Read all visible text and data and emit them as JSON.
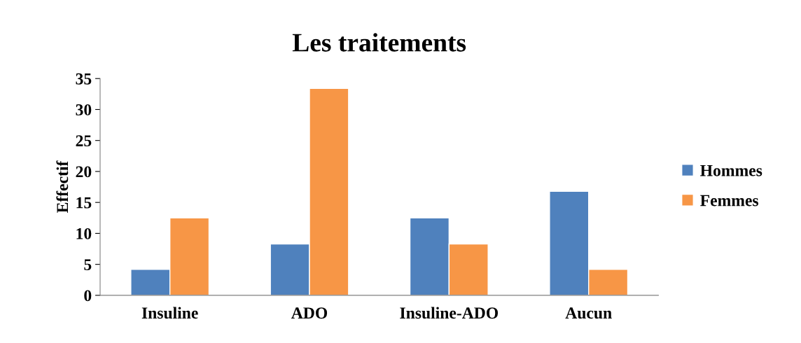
{
  "chart_data": {
    "type": "bar",
    "title": "Les traitements",
    "ylabel": "Effectif",
    "categories": [
      "Insuline",
      "ADO",
      "Insuline-ADO",
      "Aucun"
    ],
    "series": [
      {
        "name": "Hommes",
        "color": "#4f81bd",
        "values": [
          4.2,
          8.3,
          12.5,
          16.8
        ]
      },
      {
        "name": "Femmes",
        "color": "#f79646",
        "values": [
          12.5,
          33.4,
          8.3,
          4.2
        ]
      }
    ],
    "ylim": [
      0,
      35
    ],
    "yticks": [
      0,
      5,
      10,
      15,
      20,
      25,
      30,
      35
    ],
    "grid": false,
    "legend": "right"
  }
}
